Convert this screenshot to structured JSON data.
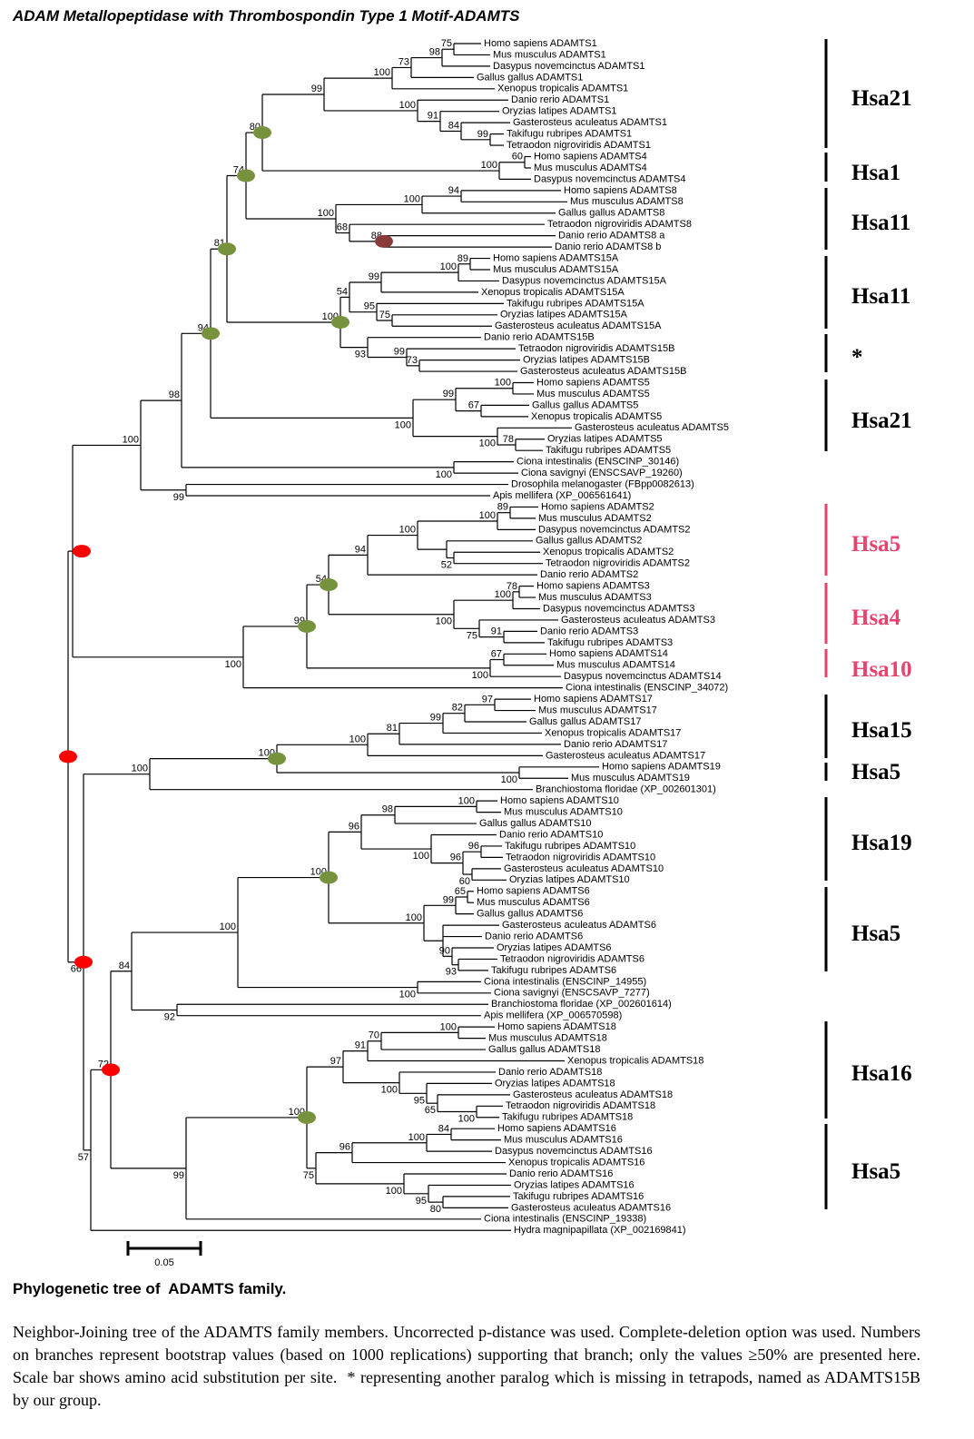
{
  "title": "ADAM Metallopeptidase with Thrombospondin Type 1 Motif-ADAMTS",
  "tree": {
    "leaves": [
      "Homo sapiens ADAMTS1",
      "Mus musculus ADAMTS1",
      "Dasypus novemcinctus ADAMTS1",
      "Gallus gallus ADAMTS1",
      "Xenopus tropicalis ADAMTS1",
      "Danio rerio ADAMTS1",
      "Oryzias latipes ADAMTS1",
      "Gasterosteus aculeatus ADAMTS1",
      "Takifugu rubripes ADAMTS1",
      "Tetraodon nigroviridis ADAMTS1",
      "Homo sapiens ADAMTS4",
      "Mus musculus ADAMTS4",
      "Dasypus novemcinctus ADAMTS4",
      "Homo sapiens ADAMTS8",
      "Mus musculus ADAMTS8",
      "Gallus gallus ADAMTS8",
      "Tetraodon nigroviridis ADAMTS8",
      "Danio rerio ADAMTS8 a",
      "Danio rerio ADAMTS8 b",
      "Homo sapiens ADAMTS15A",
      "Mus musculus ADAMTS15A",
      "Dasypus novemcinctus ADAMTS15A",
      "Xenopus tropicalis ADAMTS15A",
      "Takifugu rubripes ADAMTS15A",
      "Oryzias latipes ADAMTS15A",
      "Gasterosteus aculeatus ADAMTS15A",
      "Danio rerio ADAMTS15B",
      "Tetraodon nigroviridis ADAMTS15B",
      "Oryzias latipes ADAMTS15B",
      "Gasterosteus aculeatus ADAMTS15B",
      "Homo sapiens ADAMTS5",
      "Mus musculus ADAMTS5",
      "Gallus gallus ADAMTS5",
      "Xenopus tropicalis ADAMTS5",
      "Gasterosteus aculeatus ADAMTS5",
      "Oryzias latipes ADAMTS5",
      "Takifugu rubripes ADAMTS5",
      "Ciona intestinalis (ENSCINP_30146)",
      "Ciona savignyi (ENSCSAVP_19260)",
      "Drosophila melanogaster (FBpp0082613)",
      "Apis mellifera (XP_006561641)",
      "Homo sapiens ADAMTS2",
      "Mus musculus ADAMTS2",
      "Dasypus novemcinctus ADAMTS2",
      "Gallus gallus ADAMTS2",
      "Xenopus tropicalis ADAMTS2",
      "Tetraodon nigroviridis ADAMTS2",
      "Danio rerio ADAMTS2",
      "Homo sapiens ADAMTS3",
      "Mus musculus ADAMTS3",
      "Dasypus novemcinctus ADAMTS3",
      "Gasterosteus aculeatus ADAMTS3",
      "Danio rerio ADAMTS3",
      "Takifugu rubripes ADAMTS3",
      "Homo sapiens ADAMTS14",
      "Mus musculus ADAMTS14",
      "Dasypus novemcinctus ADAMTS14",
      "Ciona intestinalis (ENSCINP_34072)",
      "Homo sapiens ADAMTS17",
      "Mus musculus ADAMTS17",
      "Gallus gallus ADAMTS17",
      "Xenopus tropicalis ADAMTS17",
      "Danio rerio ADAMTS17",
      "Gasterosteus aculeatus ADAMTS17",
      "Homo sapiens ADAMTS19",
      "Mus musculus ADAMTS19",
      "Branchiostoma floridae (XP_002601301)",
      "Homo sapiens ADAMTS10",
      "Mus musculus ADAMTS10",
      "Gallus gallus ADAMTS10",
      "Danio rerio ADAMTS10",
      "Takifugu rubripes ADAMTS10",
      "Tetraodon nigroviridis ADAMTS10",
      "Gasterosteus aculeatus ADAMTS10",
      "Oryzias latipes ADAMTS10",
      "Homo sapiens ADAMTS6",
      "Mus musculus ADAMTS6",
      "Gallus gallus ADAMTS6",
      "Gasterosteus aculeatus ADAMTS6",
      "Danio rerio ADAMTS6",
      "Oryzias latipes ADAMTS6",
      "Tetraodon nigroviridis ADAMTS6",
      "Takifugu rubripes ADAMTS6",
      "Ciona intestinalis (ENSCINP_14955)",
      "Ciona savignyi (ENSCSAVP_7277)",
      "Branchiostoma floridae (XP_002601614)",
      "Apis mellifera (XP_006570598)",
      "Homo sapiens ADAMTS18",
      "Mus musculus ADAMTS18",
      "Gallus gallus ADAMTS18",
      "Xenopus tropicalis ADAMTS18",
      "Danio rerio ADAMTS18",
      "Oryzias latipes ADAMTS18",
      "Gasterosteus aculeatus ADAMTS18",
      "Tetraodon nigroviridis ADAMTS18",
      "Takifugu rubripes ADAMTS18",
      "Homo sapiens ADAMTS16",
      "Mus musculus ADAMTS16",
      "Dasypus novemcinctus ADAMTS16",
      "Xenopus tropicalis ADAMTS16",
      "Danio rerio ADAMTS16",
      "Oryzias latipes ADAMTS16",
      "Takifugu rubripes ADAMTS16",
      "Gasterosteus aculeatus ADAMTS16",
      "Ciona intestinalis (ENSCINP_19338)",
      "Hydra magnipapillata (XP_002169841)"
    ],
    "bootstrap": [
      100,
      98,
      94,
      81,
      74,
      80,
      99,
      100,
      73,
      98,
      75,
      100,
      91,
      84,
      99,
      100,
      60,
      100,
      100,
      94,
      68,
      88,
      100,
      54,
      99,
      100,
      89,
      95,
      75,
      93,
      99,
      73,
      100,
      99,
      100,
      67,
      100,
      78,
      100,
      99,
      100,
      99,
      54,
      94,
      100,
      100,
      89,
      52,
      100,
      100,
      78,
      75,
      91,
      100,
      67,
      66,
      100,
      100,
      100,
      81,
      99,
      82,
      97,
      100,
      57,
      72,
      84,
      100,
      100,
      96,
      98,
      100,
      100,
      96,
      96,
      60,
      100,
      99,
      65,
      90,
      93,
      100,
      92,
      99,
      100,
      97,
      91,
      70,
      100,
      100,
      95,
      65,
      100,
      75,
      96,
      100,
      84,
      100,
      95,
      80
    ],
    "clades": [
      "Hsa21",
      "Hsa1",
      "Hsa11",
      "Hsa11",
      "*",
      "Hsa21",
      "Hsa5",
      "Hsa4",
      "Hsa10",
      "Hsa15",
      "Hsa5",
      "Hsa19",
      "Hsa5",
      "Hsa16",
      "Hsa5"
    ]
  },
  "scale_bar": "0.05",
  "caption": {
    "title": "Phylogenetic tree of  ADAMTS family.",
    "text": "Neighbor-Joining tree of the ADAMTS family members. Uncorrected p-distance was used. Complete-deletion option was used. Numbers on branches represent bootstrap values (based on 1000 replications) supporting that branch; only the values ≥50% are presented here. Scale bar shows amino acid substitution per site.  * representing another paralog which is missing in tetrapods, named as ADAMTS15B by our group."
  }
}
